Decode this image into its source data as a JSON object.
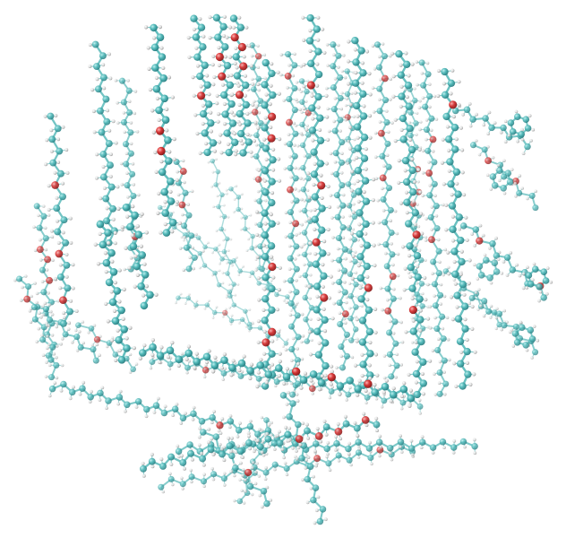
{
  "image": {
    "subject": "molecular-dynamics-snapshot",
    "representation": "ball-and-stick",
    "background": "#ffffff",
    "atom_colors": {
      "carbon": "#4fb8b8",
      "carbon_highlight": "#a8e0e0",
      "carbon_shadow": "#2b8589",
      "oxygen": "#d93030",
      "hydrogen": "#e4e4e4",
      "hydrogen_shadow": "#9a9a9a"
    },
    "bond_color": "#5fbcbc"
  }
}
